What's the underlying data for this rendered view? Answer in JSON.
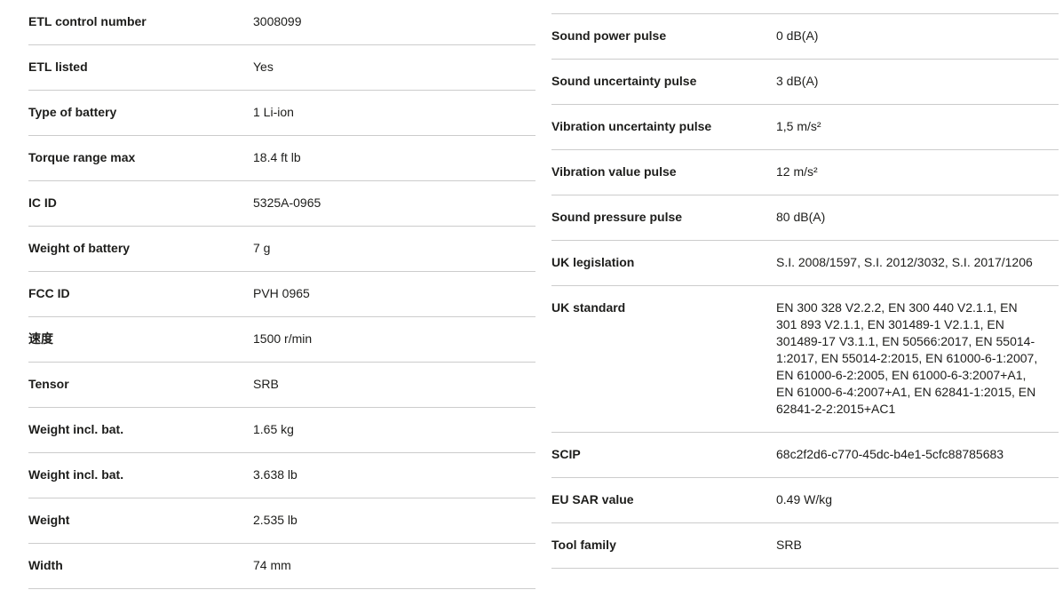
{
  "colors": {
    "background": "#ffffff",
    "divider": "#cccccc",
    "text": "#1d1d1b"
  },
  "spec_table": {
    "left_column": {
      "rows": [
        {
          "label": "ETL control number",
          "value": "3008099"
        },
        {
          "label": "ETL listed",
          "value": "Yes"
        },
        {
          "label": "Type of battery",
          "value": "1 Li-ion"
        },
        {
          "label": "Torque range max",
          "value": "18.4 ft lb"
        },
        {
          "label": "IC ID",
          "value": "5325A-0965"
        },
        {
          "label": "Weight of battery",
          "value": "7 g"
        },
        {
          "label": "FCC ID",
          "value": "PVH 0965"
        },
        {
          "label": "速度",
          "value": "1500 r/min"
        },
        {
          "label": "Tensor",
          "value": "SRB"
        },
        {
          "label": "Weight incl. bat.",
          "value": "1.65 kg"
        },
        {
          "label": "Weight incl. bat.",
          "value": "3.638 lb"
        },
        {
          "label": "Weight",
          "value": "2.535 lb"
        },
        {
          "label": "Width",
          "value": "74 mm"
        }
      ]
    },
    "right_column": {
      "rows": [
        {
          "label": "Sound power pulse",
          "value": "0 dB(A)"
        },
        {
          "label": "Sound uncertainty pulse",
          "value": "3 dB(A)"
        },
        {
          "label": "Vibration uncertainty pulse",
          "value": "1,5 m/s²"
        },
        {
          "label": "Vibration value pulse",
          "value": "12 m/s²"
        },
        {
          "label": "Sound pressure pulse",
          "value": "80 dB(A)"
        },
        {
          "label": "UK legislation",
          "value": "S.I. 2008/1597, S.I. 2012/3032, S.I. 2017/1206"
        },
        {
          "label": "UK standard",
          "value": "EN 300 328 V2.2.2, EN 300 440 V2.1.1, EN 301 893 V2.1.1, EN 301489-1 V2.1.1, EN 301489-17 V3.1.1, EN 50566:2017, EN 55014-1:2017, EN 55014-2:2015, EN 61000-6-1:2007, EN 61000-6-2:2005, EN 61000-6-3:2007+A1, EN 61000-6-4:2007+A1, EN 62841-1:2015, EN 62841-2-2:2015+AC1"
        },
        {
          "label": "SCIP",
          "value": "68c2f2d6-c770-45dc-b4e1-5cfc88785683"
        },
        {
          "label": "EU SAR value",
          "value": "0.49 W/kg"
        },
        {
          "label": "Tool family",
          "value": "SRB"
        }
      ]
    }
  }
}
